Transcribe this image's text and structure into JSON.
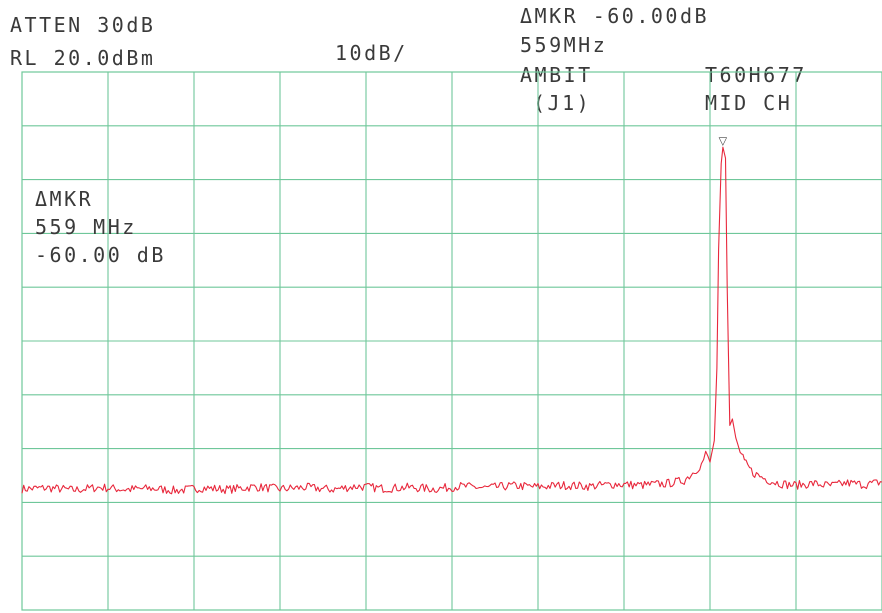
{
  "header": {
    "atten": "ATTEN 30dB",
    "rl": "RL 20.0dBm",
    "scale": "10dB/",
    "marker_top_line1": "ΔMKR -60.00dB",
    "marker_top_line2": "559MHz",
    "device": "AMBIT",
    "port": "(J1)",
    "model": "T60H677",
    "channel": "MID CH"
  },
  "marker_box": {
    "line1": "ΔMKR",
    "line2": "559 MHz",
    "line3": "-60.00 dB"
  },
  "colors": {
    "trace": "#e8283c",
    "grid": "#6fc79a",
    "text": "#3a3a3a"
  },
  "chart_data": {
    "type": "line",
    "title": "",
    "xlabel": "",
    "ylabel": "",
    "y_unit": "dBm",
    "reference_level": 20.0,
    "scale_per_div": 10,
    "x_divisions": 10,
    "y_divisions": 10,
    "x_range": [
      0,
      10
    ],
    "ylim": [
      -80,
      20
    ],
    "grid": true,
    "series": [
      {
        "name": "",
        "x": [
          0,
          0.3,
          0.6,
          0.9,
          1.2,
          1.5,
          1.8,
          2.1,
          2.4,
          2.7,
          3.0,
          3.3,
          3.6,
          3.9,
          4.2,
          4.5,
          4.8,
          5.1,
          5.4,
          5.7,
          6.0,
          6.3,
          6.6,
          6.9,
          7.2,
          7.5,
          7.7,
          7.8,
          7.9,
          7.95,
          8.0,
          8.05,
          8.08,
          8.1,
          8.13,
          8.15,
          8.18,
          8.2,
          8.23,
          8.26,
          8.3,
          8.35,
          8.4,
          8.5,
          8.6,
          8.7,
          8.8,
          8.9,
          9.0,
          9.2,
          9.4,
          9.6,
          9.8,
          10.0
        ],
        "values": [
          -57.5,
          -57.3,
          -57.7,
          -57.2,
          -57.6,
          -57.4,
          -57.8,
          -57.3,
          -57.6,
          -57.1,
          -57.5,
          -57.2,
          -57.6,
          -57.0,
          -57.4,
          -57.2,
          -57.5,
          -57.0,
          -57.3,
          -56.9,
          -57.1,
          -56.8,
          -57.0,
          -56.6,
          -56.8,
          -56.5,
          -55.9,
          -54.5,
          -53.0,
          -51.0,
          -52.5,
          -48.5,
          -35.0,
          -13.0,
          3.0,
          6.0,
          4.0,
          -20.0,
          -46.0,
          -44.5,
          -48.0,
          -50.5,
          -52.5,
          -54.5,
          -55.3,
          -56.0,
          -56.4,
          -56.7,
          -56.8,
          -56.5,
          -56.9,
          -56.4,
          -56.7,
          -56.2
        ]
      }
    ],
    "markers": [
      {
        "symbol": "▽",
        "x": 8.15,
        "value": 6.0
      }
    ]
  }
}
